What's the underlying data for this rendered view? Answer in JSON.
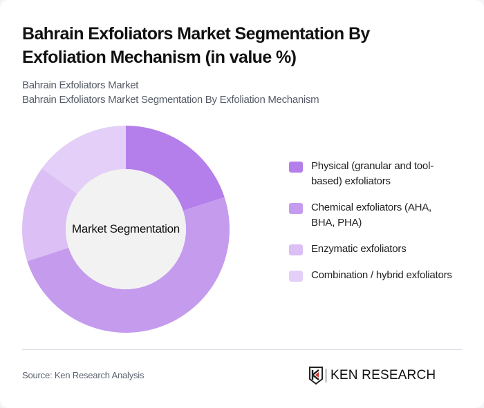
{
  "header": {
    "title": "Bahrain Exfoliators Market Segmentation By Exfoliation Mechanism (in value %)",
    "subtitle_line1": "Bahrain Exfoliators Market",
    "subtitle_line2": "Bahrain Exfoliators Market Segmentation By Exfoliation Mechanism"
  },
  "chart": {
    "center_label": "Market Segmentation"
  },
  "legend": {
    "items": [
      {
        "label": "Physical (granular and tool-based) exfoliators",
        "color": "#b47fea"
      },
      {
        "label": "Chemical exfoliators (AHA, BHA, PHA)",
        "color": "#c59bee"
      },
      {
        "label": "Enzymatic exfoliators",
        "color": "#dbbff5"
      },
      {
        "label": "Combination / hybrid exfoliators",
        "color": "#e3cff7"
      }
    ]
  },
  "footer": {
    "source": "Source: Ken Research Analysis",
    "logo_text": "KEN RESEARCH"
  },
  "chart_data": {
    "type": "pie",
    "title": "Bahrain Exfoliators Market Segmentation By Exfoliation Mechanism (in value %)",
    "subtitle": "Bahrain Exfoliators Market Segmentation By Exfoliation Mechanism",
    "center_label": "Market Segmentation",
    "donut": true,
    "categories": [
      "Physical (granular and tool-based) exfoliators",
      "Chemical exfoliators (AHA, BHA, PHA)",
      "Enzymatic exfoliators",
      "Combination / hybrid exfoliators"
    ],
    "values": [
      20,
      50,
      15,
      15
    ],
    "colors": [
      "#b47fea",
      "#c59bee",
      "#dbbff5",
      "#e3cff7"
    ],
    "legend_position": "right",
    "source": "Source: Ken Research Analysis"
  }
}
